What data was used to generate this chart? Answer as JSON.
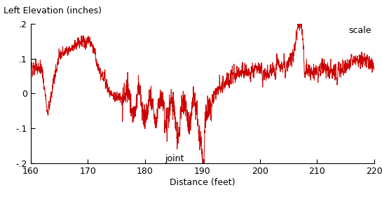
{
  "xlabel": "Distance (feet)",
  "ylabel": "Left Elevation (inches)",
  "xlim": [
    160,
    220
  ],
  "ylim": [
    -0.2,
    0.2
  ],
  "yticks": [
    -0.2,
    -0.1,
    0.0,
    0.1,
    0.2
  ],
  "ytick_labels": [
    "-.2",
    "-.1",
    "0",
    ".1",
    ".2"
  ],
  "xticks": [
    160,
    170,
    180,
    190,
    200,
    210,
    220
  ],
  "line_color": "#cc0000",
  "joint_label": "joint",
  "scale_label": "scale",
  "figsize": [
    5.45,
    2.84
  ],
  "dpi": 100,
  "seed": 12345
}
